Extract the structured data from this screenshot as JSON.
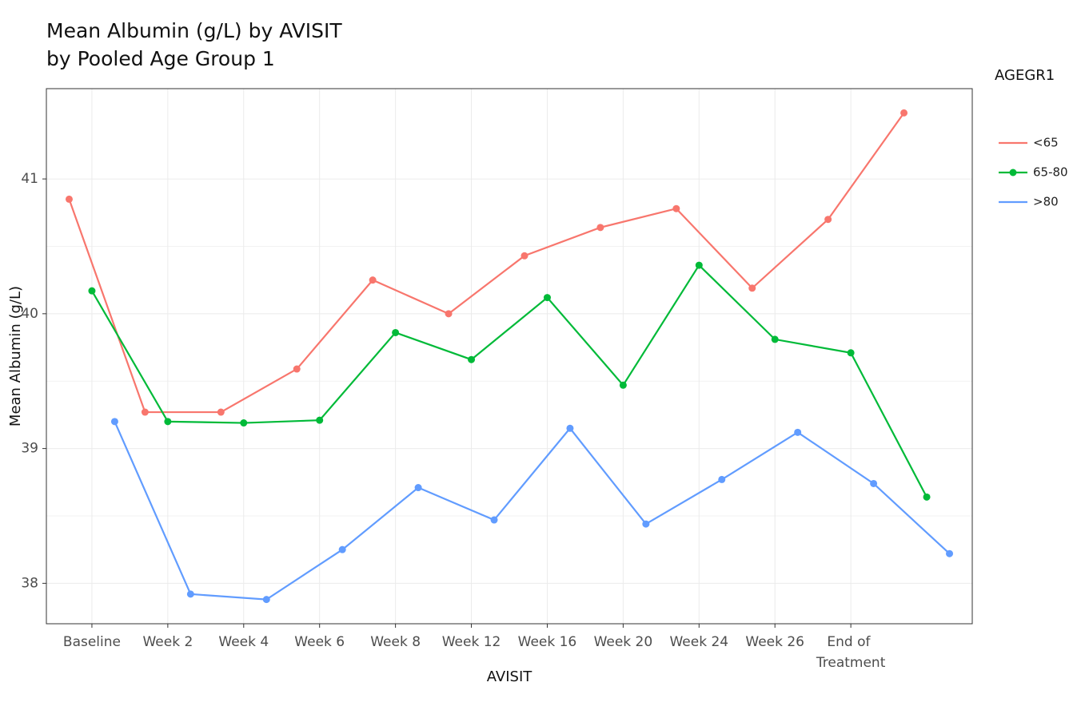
{
  "chart_data": {
    "type": "line",
    "title": [
      "Mean Albumin (g/L) by AVISIT",
      "by Pooled Age Group 1"
    ],
    "x_label": "AVISIT",
    "y_label": "Mean Albumin (g/L)",
    "legend_title": "AGEGR1",
    "categories": [
      "Baseline",
      "Week 2",
      "Week 4",
      "Week 6",
      "Week 8",
      "Week 12",
      "Week 16",
      "Week 20",
      "Week 24",
      "Week 26",
      "End of Treatment",
      null
    ],
    "series": [
      {
        "name": "<65",
        "color": "#F8766D",
        "values": [
          40.85,
          39.27,
          39.27,
          39.59,
          40.25,
          40.0,
          40.43,
          40.64,
          40.78,
          40.19,
          40.7,
          41.49
        ]
      },
      {
        "name": "65-80",
        "color": "#00BA38",
        "values": [
          40.17,
          39.2,
          39.19,
          39.21,
          39.86,
          39.66,
          40.12,
          39.47,
          40.36,
          39.81,
          39.71,
          38.64
        ]
      },
      {
        "name": ">80",
        "color": "#619CFF",
        "values": [
          39.2,
          37.92,
          37.88,
          38.25,
          38.71,
          38.47,
          39.15,
          38.44,
          38.77,
          39.12,
          38.74,
          38.22
        ]
      }
    ],
    "ylim": [
      37.7,
      41.67
    ],
    "yticks": [
      38,
      39,
      40,
      41
    ],
    "grid": true,
    "legend": "right"
  }
}
